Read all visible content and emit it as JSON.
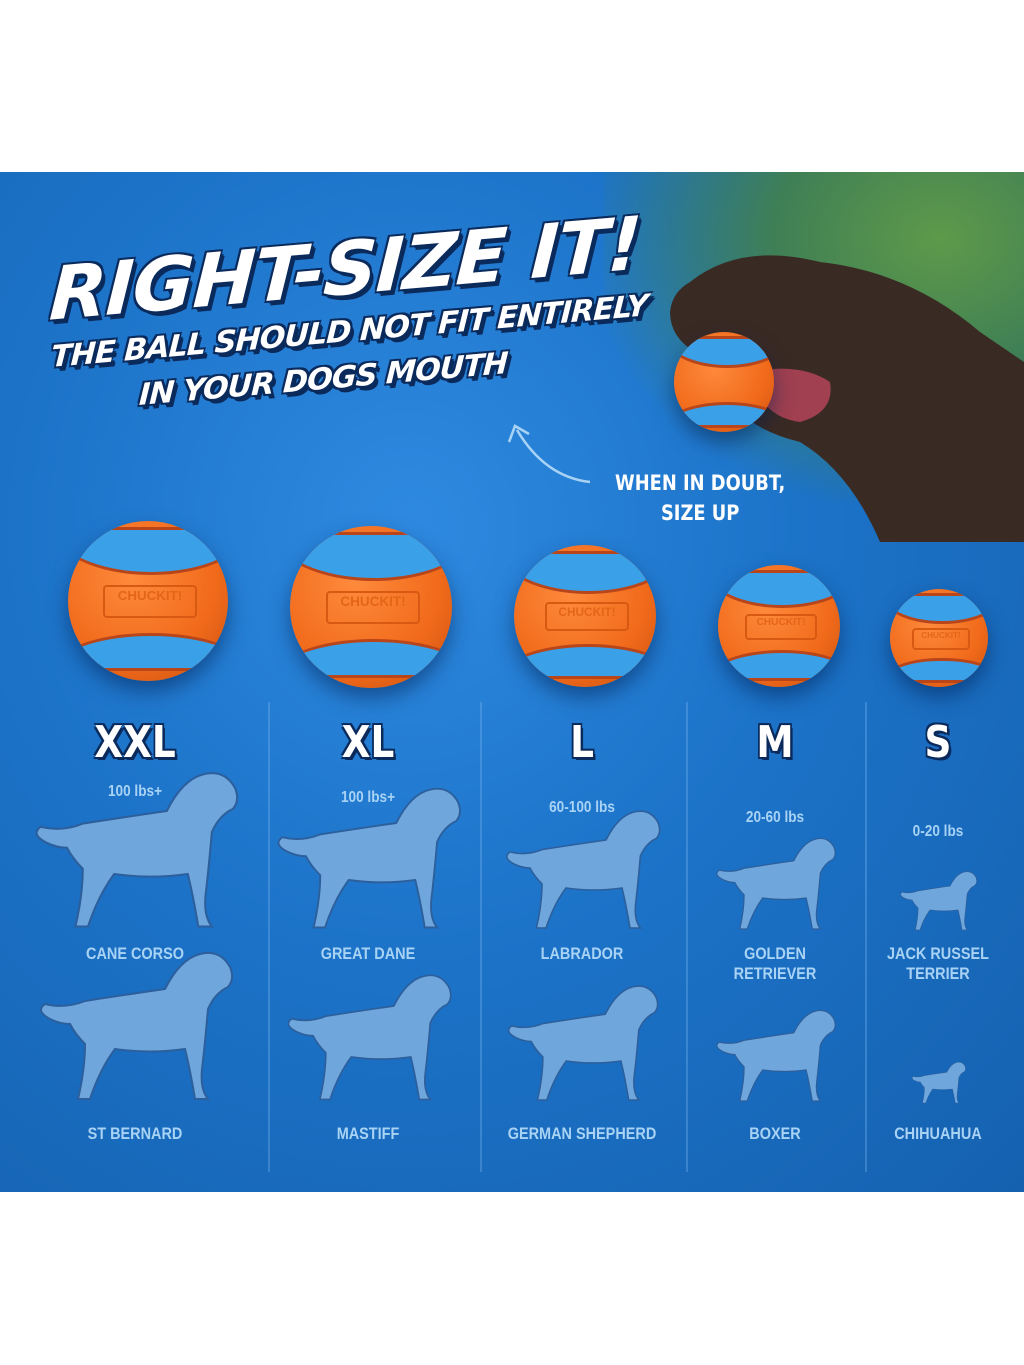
{
  "headline": {
    "title": "RIGHT-SIZE IT!",
    "subtitle_line1": "THE BALL SHOULD NOT FIT ENTIRELY",
    "subtitle_line2": "IN YOUR DOGS MOUTH"
  },
  "callout": {
    "line1": "WHEN IN DOUBT,",
    "line2": "SIZE UP"
  },
  "brand_logo": "CHUCKIT!",
  "colors": {
    "background": "#1c73c8",
    "ball_orange": "#f06a1a",
    "ball_blue": "#3aa0e8",
    "text_light_blue": "#a9d3f5",
    "outline": "#0b2a5c"
  },
  "sizes": [
    {
      "size": "XXL",
      "weight": "100 lbs+",
      "breeds": [
        "CANE CORSO",
        "ST BERNARD"
      ]
    },
    {
      "size": "XL",
      "weight": "100 lbs+",
      "breeds": [
        "GREAT DANE",
        "MASTIFF"
      ]
    },
    {
      "size": "L",
      "weight": "60-100 lbs",
      "breeds": [
        "LABRADOR",
        "GERMAN SHEPHERD"
      ]
    },
    {
      "size": "M",
      "weight": "20-60 lbs",
      "breeds": [
        "GOLDEN RETRIEVER",
        "BOXER"
      ]
    },
    {
      "size": "S",
      "weight": "0-20 lbs",
      "breeds": [
        "JACK RUSSEL TERRIER",
        "CHIHUAHUA"
      ]
    }
  ]
}
